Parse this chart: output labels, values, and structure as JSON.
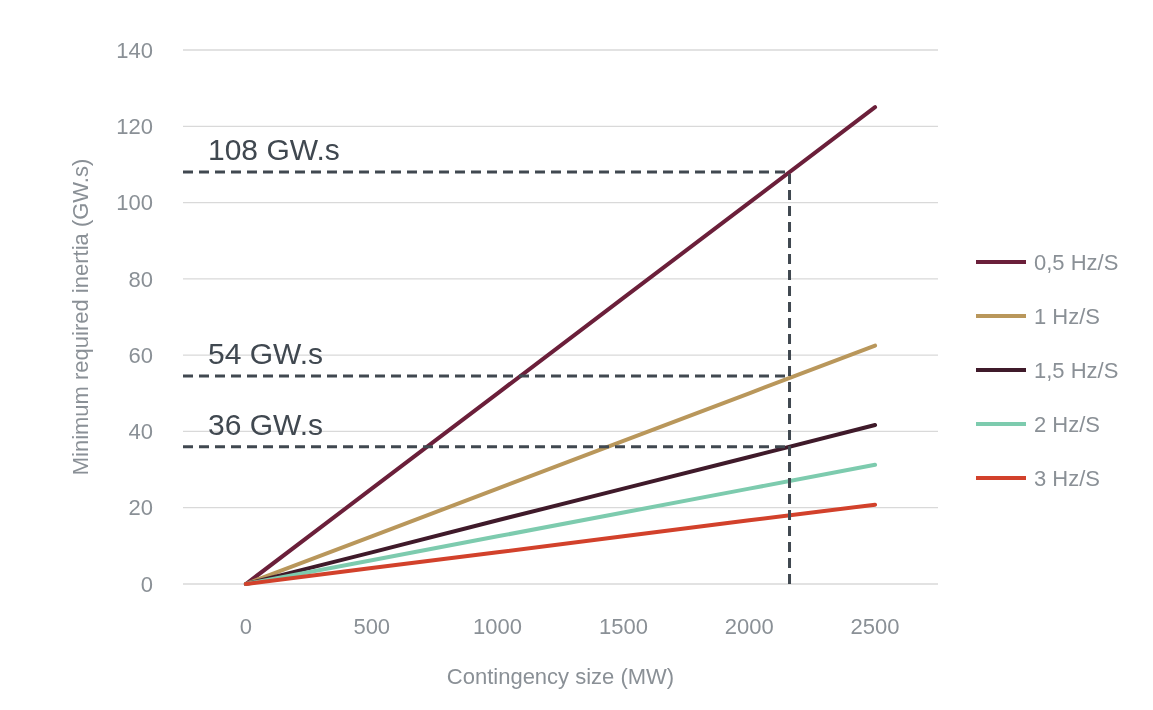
{
  "chart_data": {
    "type": "line",
    "xlabel": "Contingency size (MW)",
    "ylabel": "Minimum required inertia (GW.s)",
    "x": [
      0,
      500,
      1000,
      1500,
      2000,
      2500
    ],
    "series": [
      {
        "name": "0,5 Hz/S",
        "color": "#6b1f3a",
        "values": [
          0,
          25,
          50,
          75,
          100,
          125
        ]
      },
      {
        "name": "1 Hz/S",
        "color": "#b9975b",
        "values": [
          0,
          12.5,
          25,
          37.5,
          50,
          62.5
        ]
      },
      {
        "name": "1,5 Hz/S",
        "color": "#3f1a2a",
        "values": [
          0,
          8.3,
          16.7,
          25,
          33.3,
          41.7
        ]
      },
      {
        "name": "2 Hz/S",
        "color": "#7dcbae",
        "values": [
          0,
          6.25,
          12.5,
          18.75,
          25,
          31.25
        ]
      },
      {
        "name": "3 Hz/S",
        "color": "#d2412b",
        "values": [
          0,
          4.2,
          8.3,
          12.5,
          16.7,
          20.8
        ]
      }
    ],
    "xlim": [
      -250,
      2750
    ],
    "xticks": [
      0,
      500,
      1000,
      1500,
      2000,
      2500
    ],
    "ylim": [
      0,
      140
    ],
    "yticks": [
      0,
      20,
      40,
      60,
      80,
      100,
      120,
      140
    ],
    "grid": "y",
    "legend": "right",
    "marker": "none",
    "line_style": "solid",
    "ref_lines": [
      {
        "axis": "y",
        "value": 108,
        "label": "108 GW.s",
        "color": "#404850",
        "line_style": "dashed"
      },
      {
        "axis": "y",
        "value": 54.5,
        "label": "54 GW.s",
        "color": "#404850",
        "line_style": "dashed"
      },
      {
        "axis": "y",
        "value": 36,
        "label": "36 GW.s",
        "color": "#404850",
        "line_style": "dashed"
      },
      {
        "axis": "x",
        "value": 2160,
        "label": null,
        "color": "#404850",
        "line_style": "dashed"
      }
    ]
  }
}
